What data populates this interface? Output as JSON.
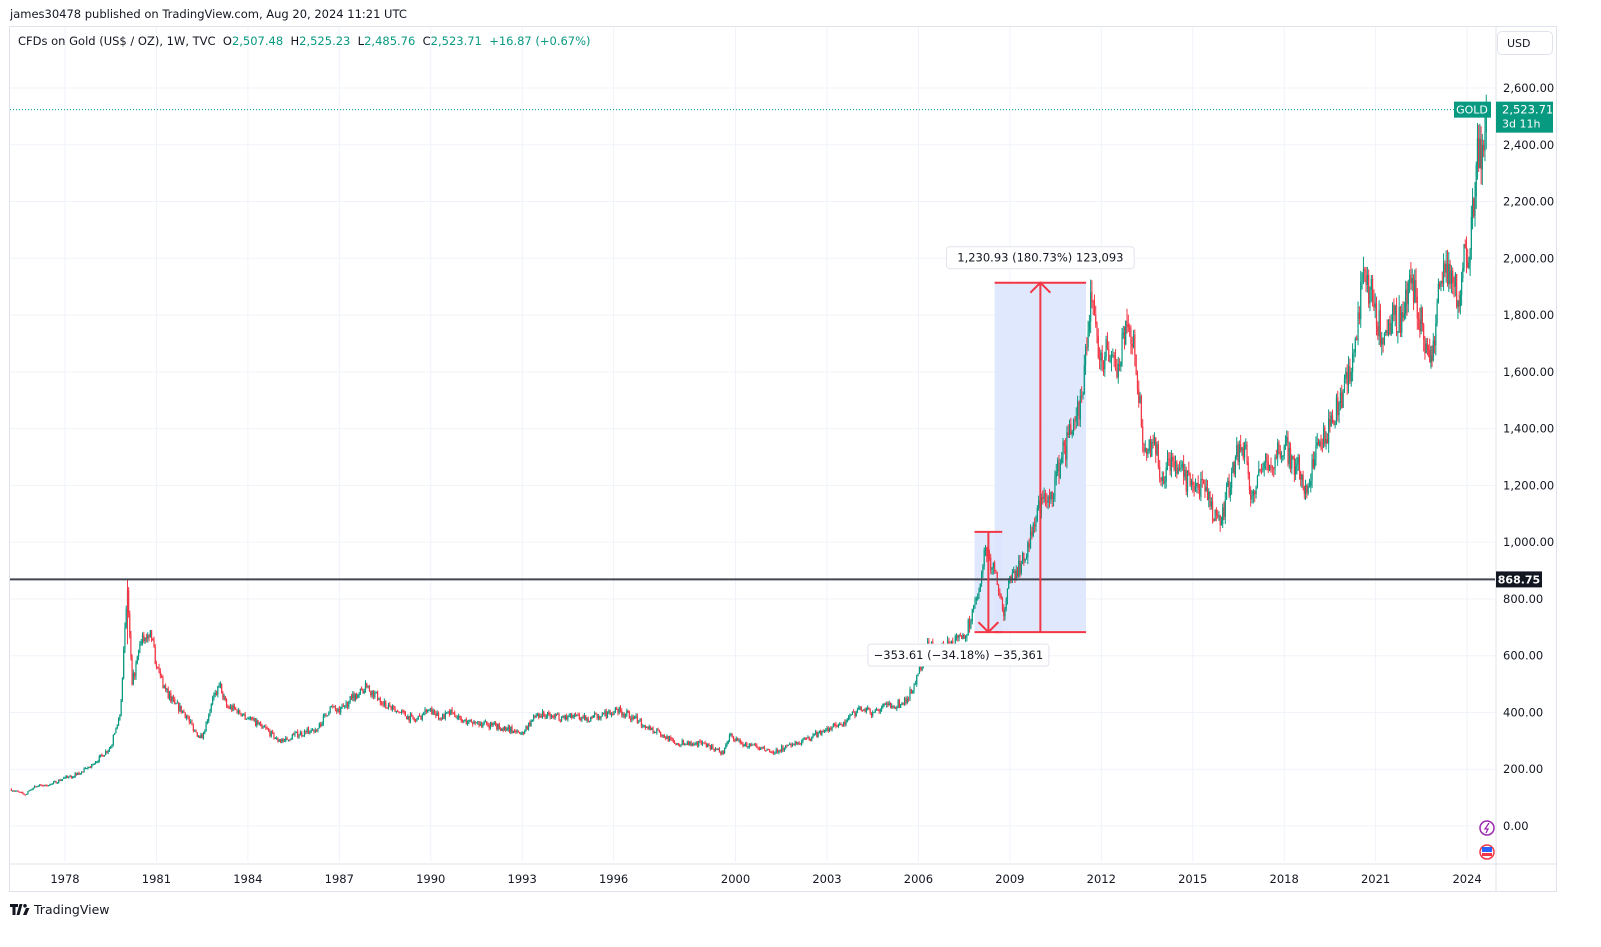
{
  "header": {
    "published": "james30478 published on TradingView.com, Aug 20, 2024 11:21 UTC",
    "symbol": "CFDs on Gold (US$ / OZ), 1W, TVC",
    "open_label": "O",
    "open": "2,507.48",
    "high_label": "H",
    "high": "2,525.23",
    "low_label": "L",
    "low": "2,485.76",
    "close_label": "C",
    "close": "2,523.71",
    "change": "+16.87 (+0.67%)"
  },
  "currency_button": "USD",
  "last_price": {
    "tag": "GOLD",
    "value": "2,523.71",
    "countdown": "3d 11h"
  },
  "footer": {
    "brand": "TradingView"
  },
  "colors": {
    "up": "#089981",
    "down": "#f23645",
    "measure_fill": "#dbe4fd",
    "measure_line": "#f23645",
    "hline": "#434651",
    "grid": "#f0f3fa"
  },
  "icons": [
    "lightning-event-icon",
    "us-flag-economic-event-icon",
    "tradingview-logo-icon"
  ],
  "chart_data": {
    "type": "candlestick",
    "title": "",
    "grid": true,
    "ylim": [
      -100,
      2700
    ],
    "xlim": [
      1976.2,
      2025.3
    ],
    "y_ticks": [
      "0.00",
      "200.00",
      "400.00",
      "600.00",
      "800.00",
      "1,000.00",
      "1,200.00",
      "1,400.00",
      "1,600.00",
      "1,800.00",
      "2,000.00",
      "2,200.00",
      "2,400.00",
      "2,600.00"
    ],
    "x_ticks": [
      "1978",
      "1981",
      "1984",
      "1987",
      "1990",
      "1993",
      "1996",
      "2000",
      "2003",
      "2006",
      "2009",
      "2012",
      "2015",
      "2018",
      "2021",
      "2024"
    ],
    "closes": [
      [
        1976.2,
        130
      ],
      [
        1976.7,
        110
      ],
      [
        1977,
        140
      ],
      [
        1977.5,
        145
      ],
      [
        1978,
        170
      ],
      [
        1978.5,
        185
      ],
      [
        1979,
        225
      ],
      [
        1979.5,
        280
      ],
      [
        1979.8,
        390
      ],
      [
        1980.05,
        830
      ],
      [
        1980.2,
        500
      ],
      [
        1980.5,
        650
      ],
      [
        1980.8,
        690
      ],
      [
        1981,
        560
      ],
      [
        1981.3,
        480
      ],
      [
        1981.6,
        430
      ],
      [
        1981.9,
        400
      ],
      [
        1982.3,
        330
      ],
      [
        1982.5,
        310
      ],
      [
        1982.8,
        430
      ],
      [
        1983.1,
        500
      ],
      [
        1983.3,
        420
      ],
      [
        1983.6,
        410
      ],
      [
        1984,
        380
      ],
      [
        1984.5,
        350
      ],
      [
        1984.9,
        310
      ],
      [
        1985.2,
        300
      ],
      [
        1985.5,
        320
      ],
      [
        1985.9,
        330
      ],
      [
        1986.3,
        345
      ],
      [
        1986.7,
        420
      ],
      [
        1987,
        400
      ],
      [
        1987.4,
        450
      ],
      [
        1987.9,
        490
      ],
      [
        1988.3,
        450
      ],
      [
        1988.7,
        410
      ],
      [
        1989,
        400
      ],
      [
        1989.5,
        370
      ],
      [
        1989.9,
        410
      ],
      [
        1990.3,
        380
      ],
      [
        1990.7,
        400
      ],
      [
        1991,
        370
      ],
      [
        1991.5,
        365
      ],
      [
        1992,
        355
      ],
      [
        1992.5,
        340
      ],
      [
        1993,
        330
      ],
      [
        1993.5,
        395
      ],
      [
        1994,
        385
      ],
      [
        1994.5,
        385
      ],
      [
        1995,
        380
      ],
      [
        1995.5,
        385
      ],
      [
        1996.1,
        410
      ],
      [
        1996.6,
        385
      ],
      [
        1997,
        355
      ],
      [
        1997.5,
        330
      ],
      [
        1998,
        290
      ],
      [
        1998.5,
        295
      ],
      [
        1999,
        290
      ],
      [
        1999.6,
        255
      ],
      [
        1999.8,
        320
      ],
      [
        2000.2,
        290
      ],
      [
        2000.7,
        275
      ],
      [
        2001.2,
        260
      ],
      [
        2001.6,
        275
      ],
      [
        2002,
        290
      ],
      [
        2002.5,
        315
      ],
      [
        2003,
        345
      ],
      [
        2003.5,
        355
      ],
      [
        2004,
        410
      ],
      [
        2004.5,
        400
      ],
      [
        2005,
        425
      ],
      [
        2005.5,
        430
      ],
      [
        2005.9,
        500
      ],
      [
        2006.3,
        650
      ],
      [
        2006.6,
        600
      ],
      [
        2007,
        640
      ],
      [
        2007.5,
        660
      ],
      [
        2007.9,
        800
      ],
      [
        2008.2,
        980
      ],
      [
        2008.5,
        900
      ],
      [
        2008.8,
        740
      ],
      [
        2009,
        880
      ],
      [
        2009.5,
        940
      ],
      [
        2009.9,
        1120
      ],
      [
        2010.3,
        1150
      ],
      [
        2010.7,
        1300
      ],
      [
        2011,
        1380
      ],
      [
        2011.4,
        1520
      ],
      [
        2011.65,
        1880
      ],
      [
        2011.9,
        1650
      ],
      [
        2012.2,
        1680
      ],
      [
        2012.6,
        1620
      ],
      [
        2012.8,
        1780
      ],
      [
        2013.1,
        1660
      ],
      [
        2013.4,
        1320
      ],
      [
        2013.7,
        1350
      ],
      [
        2014,
        1230
      ],
      [
        2014.3,
        1300
      ],
      [
        2014.7,
        1230
      ],
      [
        2015,
        1200
      ],
      [
        2015.4,
        1180
      ],
      [
        2015.9,
        1060
      ],
      [
        2016.4,
        1300
      ],
      [
        2016.7,
        1340
      ],
      [
        2016.9,
        1150
      ],
      [
        2017.3,
        1260
      ],
      [
        2017.7,
        1300
      ],
      [
        2018,
        1340
      ],
      [
        2018.5,
        1250
      ],
      [
        2018.7,
        1200
      ],
      [
        2019,
        1290
      ],
      [
        2019.5,
        1410
      ],
      [
        2019.8,
        1490
      ],
      [
        2020.2,
        1600
      ],
      [
        2020.6,
        1960
      ],
      [
        2020.9,
        1850
      ],
      [
        2021.2,
        1720
      ],
      [
        2021.6,
        1800
      ],
      [
        2021.9,
        1790
      ],
      [
        2022.2,
        1930
      ],
      [
        2022.7,
        1680
      ],
      [
        2022.85,
        1640
      ],
      [
        2023.1,
        1900
      ],
      [
        2023.4,
        1980
      ],
      [
        2023.7,
        1850
      ],
      [
        2023.9,
        2050
      ],
      [
        2024.1,
        2030
      ],
      [
        2024.3,
        2330
      ],
      [
        2024.5,
        2400
      ],
      [
        2024.63,
        2523.71
      ]
    ],
    "horizontal_line": {
      "value": 868.75,
      "label": "868.75"
    },
    "last_price_line": 2523.71,
    "measures": [
      {
        "from": [
          2008.5,
          683
        ],
        "to": [
          2011.5,
          1914
        ],
        "direction": "up",
        "label": "1,230.93 (180.73%) 123,093"
      },
      {
        "from": [
          2007.84,
          1036
        ],
        "to": [
          2008.75,
          683
        ],
        "direction": "down",
        "label": "−353.61 (−34.18%) −35,361"
      }
    ]
  }
}
